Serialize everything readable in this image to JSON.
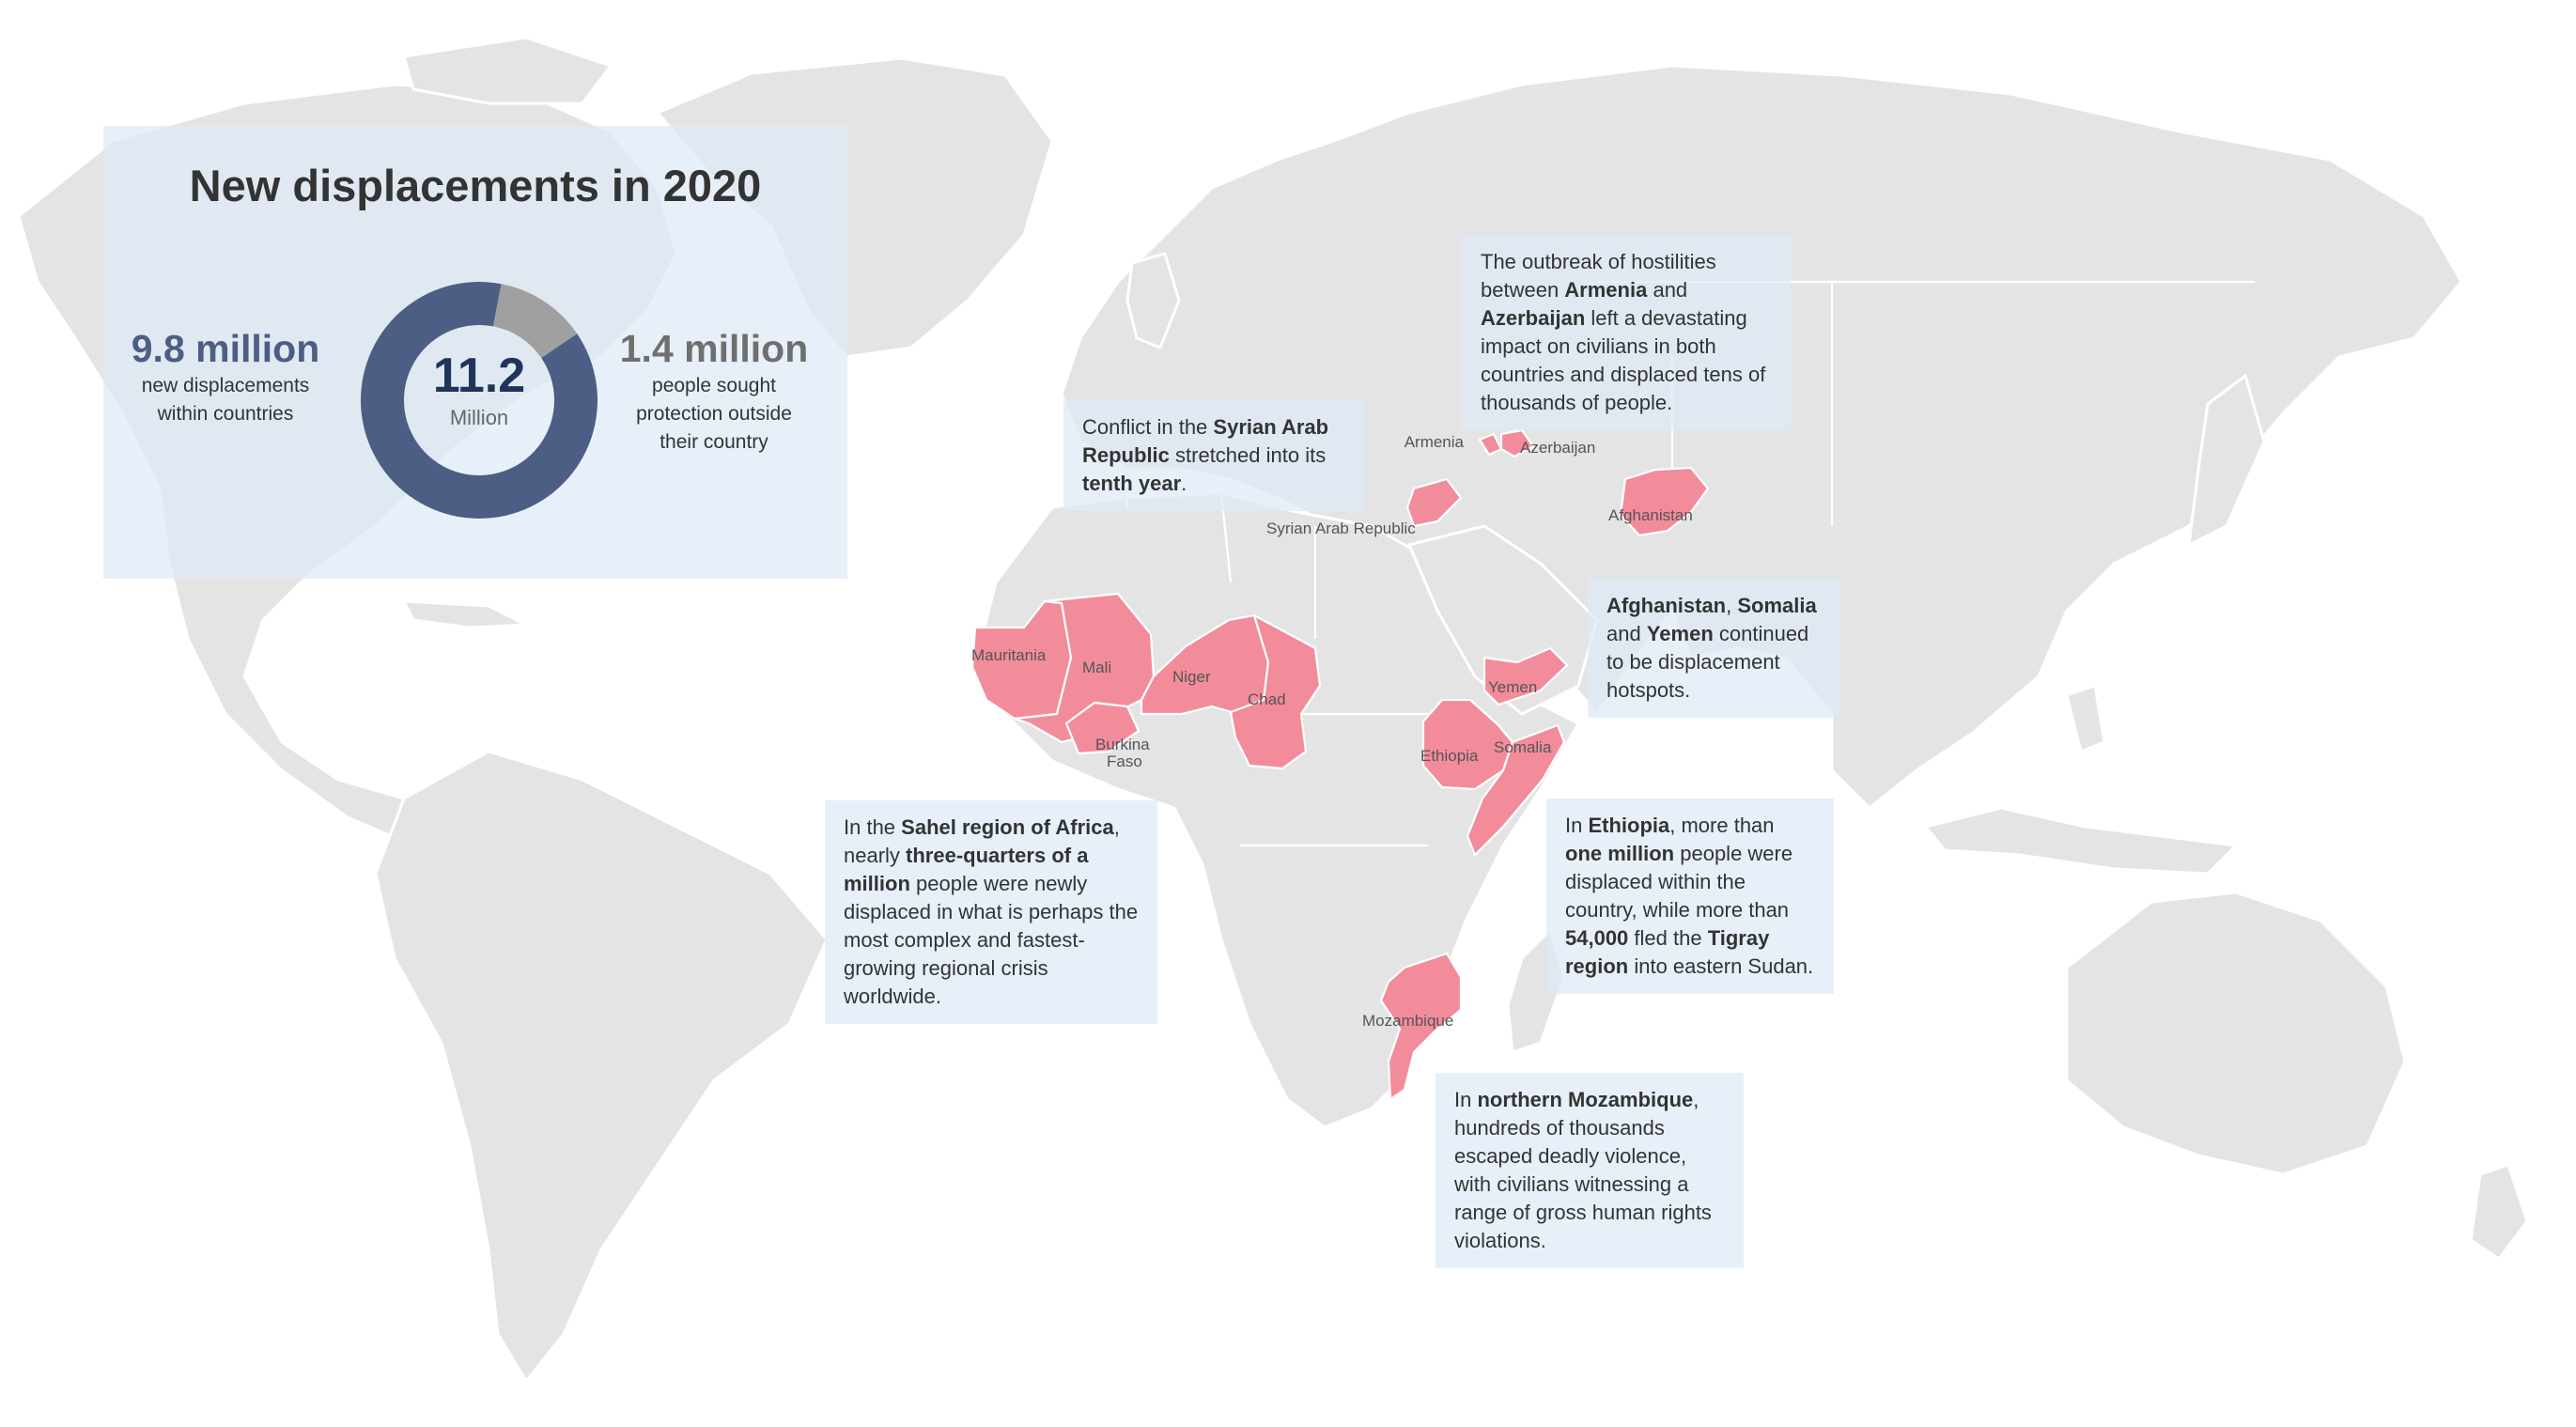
{
  "summary": {
    "title": "New displacements in 2020",
    "total": {
      "value": "11.2",
      "unit": "Million"
    },
    "segments": [
      {
        "value": "9.8 million",
        "label_lines": [
          "new displacements",
          "within countries"
        ],
        "amount": 9.8,
        "color": "#4c5e83"
      },
      {
        "value": "1.4 million",
        "label_lines": [
          "people sought",
          "protection outside",
          "their country"
        ],
        "amount": 1.4,
        "color": "#a0a0a0"
      }
    ]
  },
  "map": {
    "land_color": "#e4e4e4",
    "highlight_color": "#f28c9b",
    "country_labels": {
      "armenia": "Armenia",
      "azerbaijan": "Azerbaijan",
      "syria": "Syrian Arab Republic",
      "afghanistan": "Afghanistan",
      "mauritania": "Mauritania",
      "mali": "Mali",
      "niger": "Niger",
      "chad": "Chad",
      "burkina_line1": "Burkina",
      "burkina_line2": "Faso",
      "yemen": "Yemen",
      "ethiopia": "Ethiopia",
      "somalia": "Somalia",
      "mozambique": "Mozambique"
    }
  },
  "notes": {
    "armenia": {
      "t1": "The outbreak of hostilities between ",
      "b1": "Armenia",
      "t2": " and ",
      "b2": "Azerbaijan",
      "t3": " left a devastating impact on civilians in both countries and displaced tens of thousands of people."
    },
    "syria": {
      "t1": "Conflict in the ",
      "b1": "Syrian Arab Republic",
      "t2": " stretched into its ",
      "b2": "tenth year",
      "t3": "."
    },
    "hotspots": {
      "b1": "Afghanistan",
      "t1": ", ",
      "b2": "Somalia",
      "t2": " and ",
      "b3": "Yemen",
      "t3": " continued to be displacement hotspots."
    },
    "sahel": {
      "t1": "In the ",
      "b1": "Sahel region of Africa",
      "t2": ", nearly ",
      "b2": "three-quarters of a million",
      "t3": " people were newly displaced in what is perhaps the most complex and fastest-growing regional crisis worldwide."
    },
    "ethiopia": {
      "t1": "In ",
      "b1": "Ethiopia",
      "t2": ", more than ",
      "b2": "one million",
      "t3": " people were displaced within the country, while more than ",
      "b3": "54,000",
      "t4": " fled the ",
      "b4": "Tigray region",
      "t5": " into eastern Sudan."
    },
    "mozambique": {
      "t1": "In ",
      "b1": "northern Mozambique",
      "t2": ", hundreds of thousands escaped deadly violence, with civilians witnessing a range of gross human rights violations."
    }
  }
}
